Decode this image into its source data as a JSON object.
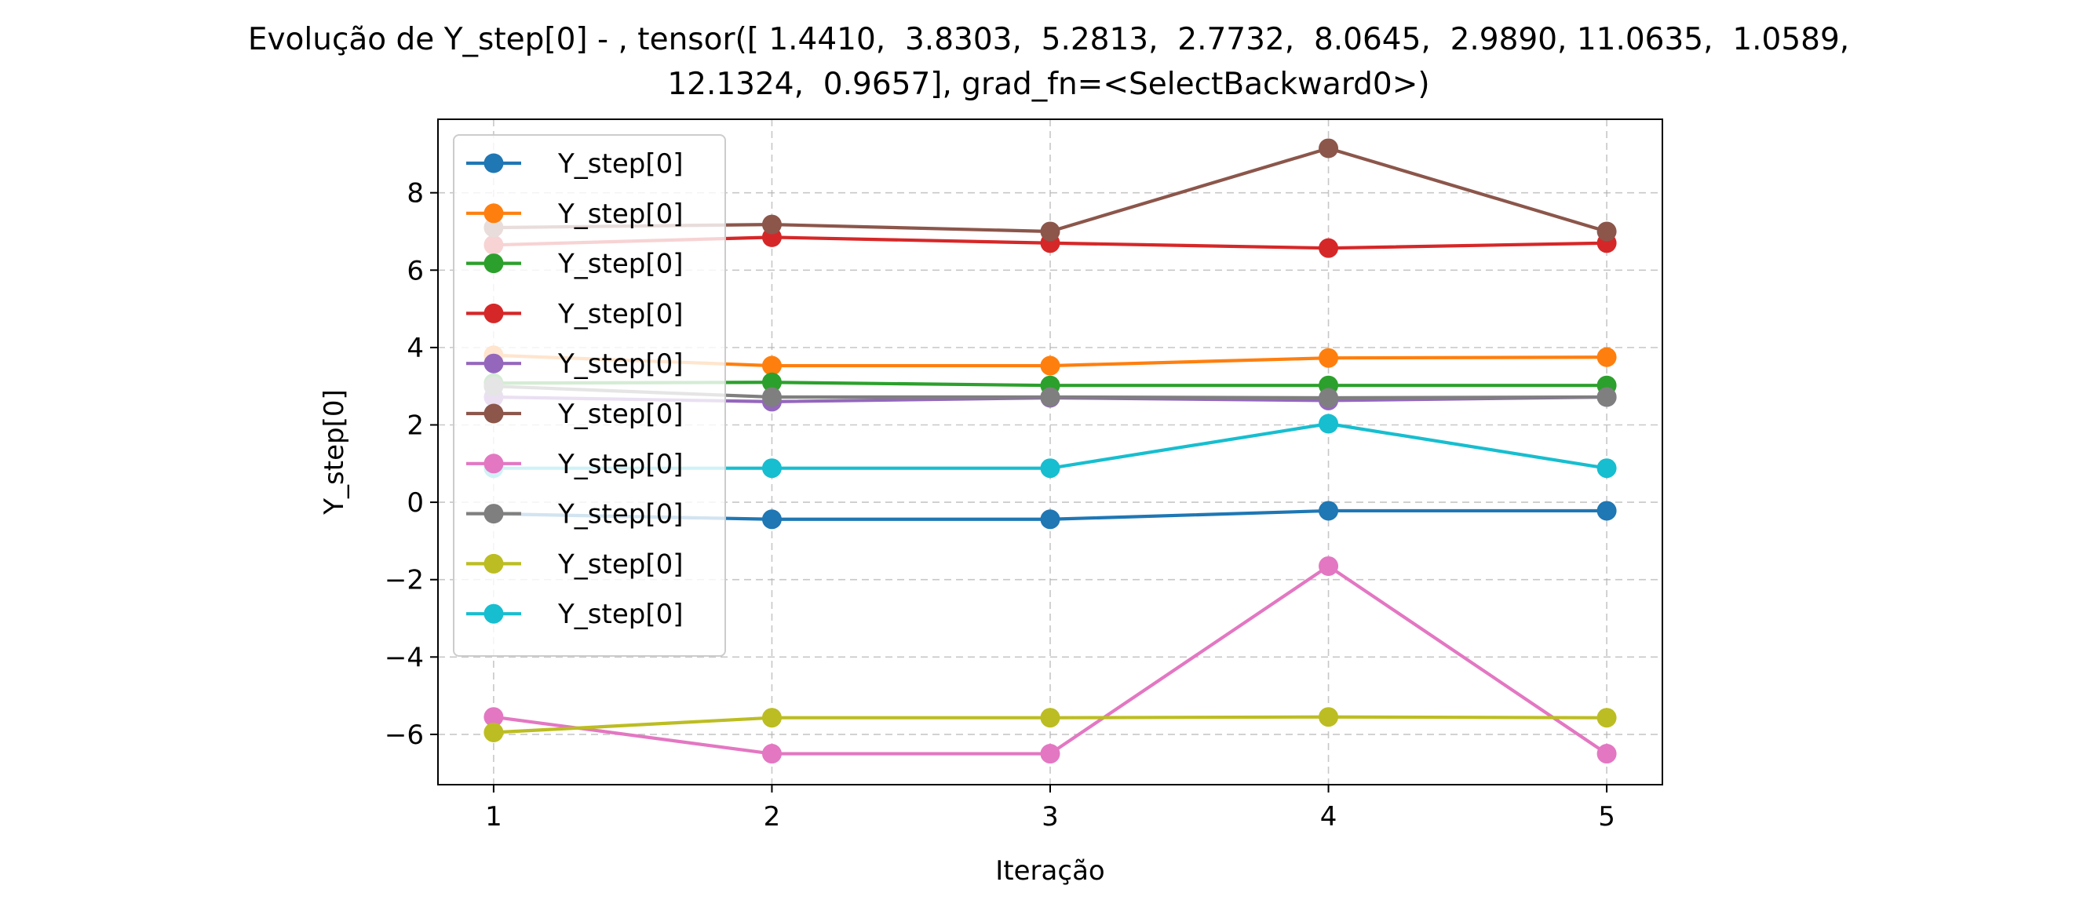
{
  "chart_data": {
    "type": "line",
    "title_lines": [
      "Evolução de Y_step[0] - , tensor([ 1.4410,  3.8303,  5.2813,  2.7732,  8.0645,  2.9890, 11.0635,  1.0589,",
      "12.1324,  0.9657], grad_fn=<SelectBackward0>)"
    ],
    "xlabel": "Iteração",
    "ylabel": "Y_step[0]",
    "x": [
      1,
      2,
      3,
      4,
      5
    ],
    "xlim": [
      0.8,
      5.2
    ],
    "ylim": [
      -7.3,
      9.9
    ],
    "xticks": [
      1,
      2,
      3,
      4,
      5
    ],
    "yticks": [
      -6,
      -4,
      -2,
      0,
      2,
      4,
      6,
      8
    ],
    "grid": true,
    "legend_position": "upper-left",
    "series": [
      {
        "name": "Y_step[0]",
        "color": "#1f77b4",
        "values": [
          -0.3,
          -0.44,
          -0.44,
          -0.22,
          -0.22
        ]
      },
      {
        "name": "Y_step[0]",
        "color": "#ff7f0e",
        "values": [
          3.8,
          3.53,
          3.53,
          3.73,
          3.75
        ]
      },
      {
        "name": "Y_step[0]",
        "color": "#2ca02c",
        "values": [
          3.08,
          3.1,
          3.02,
          3.02,
          3.02
        ]
      },
      {
        "name": "Y_step[0]",
        "color": "#d62728",
        "values": [
          6.65,
          6.85,
          6.7,
          6.57,
          6.7
        ]
      },
      {
        "name": "Y_step[0]",
        "color": "#9467bd",
        "values": [
          2.72,
          2.6,
          2.7,
          2.63,
          2.72
        ]
      },
      {
        "name": "Y_step[0]",
        "color": "#8c564b",
        "values": [
          7.1,
          7.18,
          7.0,
          9.15,
          7.0
        ]
      },
      {
        "name": "Y_step[0]",
        "color": "#e377c2",
        "values": [
          -5.55,
          -6.5,
          -6.5,
          -1.65,
          -6.5
        ]
      },
      {
        "name": "Y_step[0]",
        "color": "#7f7f7f",
        "values": [
          3.0,
          2.72,
          2.72,
          2.7,
          2.72
        ]
      },
      {
        "name": "Y_step[0]",
        "color": "#bcbd22",
        "values": [
          -5.95,
          -5.57,
          -5.57,
          -5.55,
          -5.57
        ]
      },
      {
        "name": "Y_step[0]",
        "color": "#17becf",
        "values": [
          0.88,
          0.88,
          0.88,
          2.03,
          0.88
        ]
      }
    ]
  }
}
